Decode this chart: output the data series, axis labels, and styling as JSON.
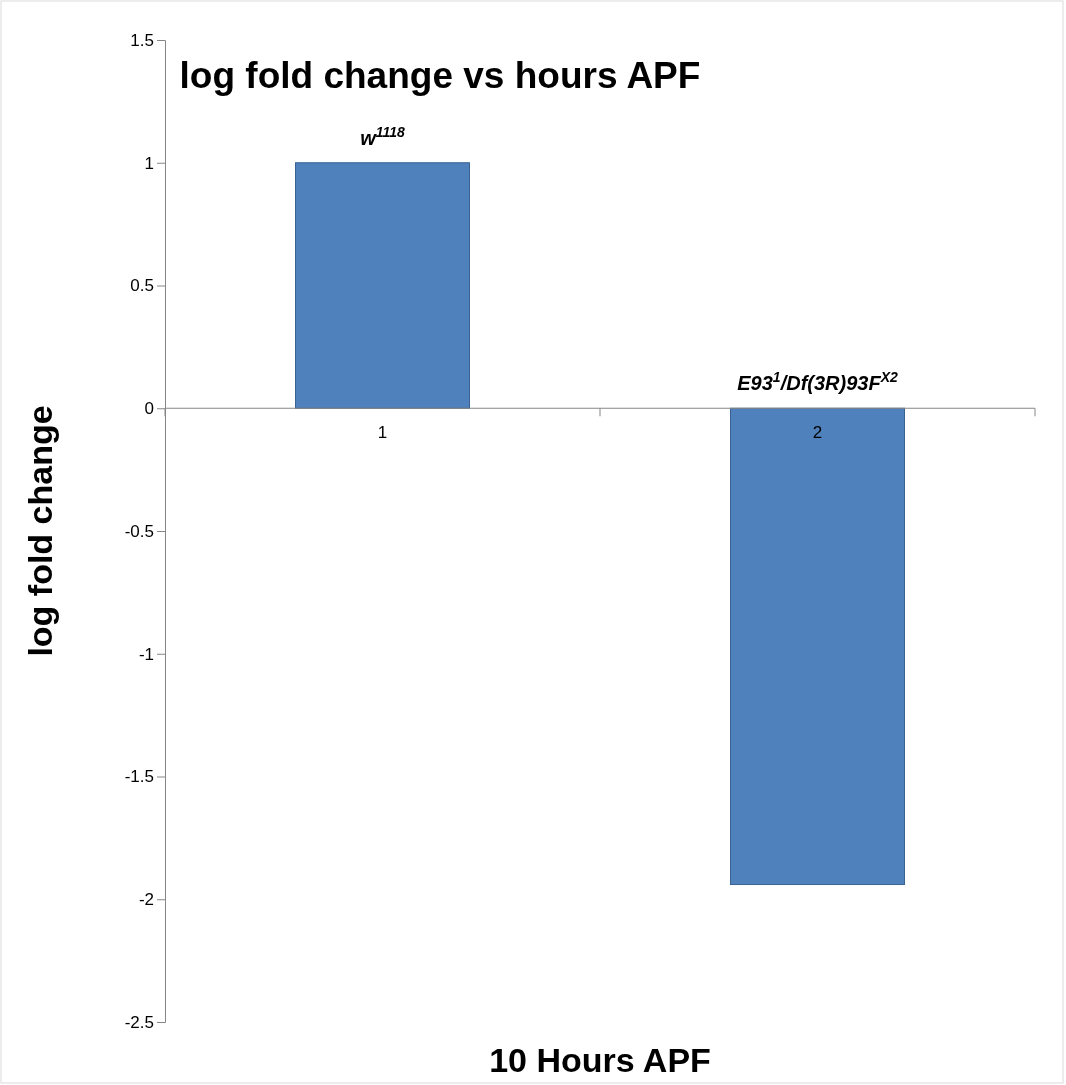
{
  "chart_data": {
    "type": "bar",
    "title": "log fold change vs hours APF",
    "xlabel": "10 Hours APF",
    "ylabel": "log fold change",
    "categories": [
      "1",
      "2"
    ],
    "values": [
      1,
      -1.94
    ],
    "color": "#4f81bd",
    "ylim": [
      -2.5,
      1.5
    ],
    "yticks": [
      -2.5,
      -2,
      -1.5,
      -1,
      -0.5,
      0,
      0.5,
      1,
      1.5
    ],
    "annotations": [
      {
        "text": "w$^{1118}$",
        "x": "1",
        "y": 1
      },
      {
        "text": "E93$^{1}$/Df(3R)93F$^{X2}$",
        "x": "2",
        "y": 0
      }
    ]
  }
}
